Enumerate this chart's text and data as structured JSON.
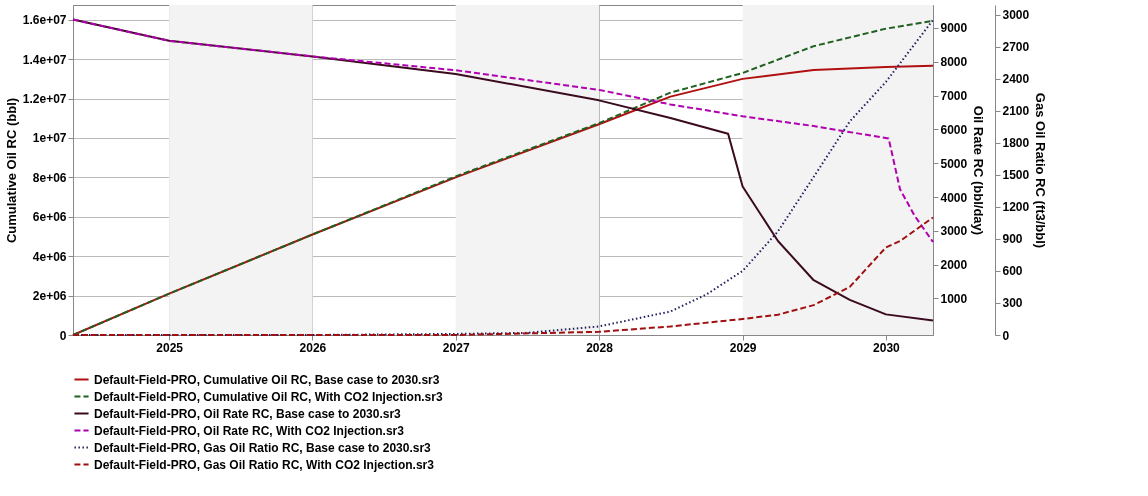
{
  "chart_data": {
    "type": "line",
    "ylabel": "Cumulative Oil RC (bbl)",
    "y2label": "Oil Rate RC (bbl/day)",
    "y3label": "Gas Oil Ratio RC (ft3/bbl)",
    "xlim": [
      "2024-05-01",
      "2030-05-01"
    ],
    "xticks": [
      "2025",
      "2026",
      "2027",
      "2028",
      "2029",
      "2030"
    ],
    "ylim": [
      0,
      16750000
    ],
    "yticks": [
      {
        "value": 0,
        "label": "0"
      },
      {
        "value": 2000000,
        "label": "2e+06"
      },
      {
        "value": 4000000,
        "label": "4e+06"
      },
      {
        "value": 6000000,
        "label": "6e+06"
      },
      {
        "value": 8000000,
        "label": "8e+06"
      },
      {
        "value": 10000000,
        "label": "1e+07"
      },
      {
        "value": 12000000,
        "label": "1.2e+07"
      },
      {
        "value": 14000000,
        "label": "1.4e+07"
      },
      {
        "value": 16000000,
        "label": "1.6e+07"
      }
    ],
    "y2lim": [
      -80,
      9680
    ],
    "y2ticks": [
      1000,
      2000,
      3000,
      4000,
      5000,
      6000,
      7000,
      8000,
      9000
    ],
    "y3lim": [
      0,
      3090
    ],
    "y3ticks": [
      0,
      300,
      600,
      900,
      1200,
      1500,
      1800,
      2100,
      2400,
      2700,
      3000
    ],
    "grid": true,
    "legend": "bottom",
    "marker": "none",
    "bands": [
      {
        "axis": "x",
        "from": "2025-01-01",
        "to": "2026-01-01",
        "color": "#f3f3f3"
      },
      {
        "axis": "x",
        "from": "2027-01-01",
        "to": "2028-01-01",
        "color": "#f3f3f3"
      },
      {
        "axis": "x",
        "from": "2029-01-01",
        "to": "2030-05-01",
        "color": "#f3f3f3"
      }
    ],
    "series": [
      {
        "name": "Default-Field-PRO, Cumulative Oil RC, Base case to 2030.sr3",
        "color": "#b01010",
        "line_style": "solid",
        "x": [
          "2024-05-01",
          "2025-01-01",
          "2026-01-01",
          "2027-01-01",
          "2028-01-01",
          "2028-07-01",
          "2029-01-01",
          "2029-07-01",
          "2030-01-01",
          "2030-05-01"
        ],
        "values": [
          0,
          2100000,
          5100000,
          8000000,
          10700000,
          12100000,
          13000000,
          13450000,
          13600000,
          13670000
        ]
      },
      {
        "name": "Default-Field-PRO, Cumulative Oil RC, With CO2 Injection.sr3",
        "color": "#206020",
        "line_style": "dashed",
        "x": [
          "2024-05-01",
          "2025-01-01",
          "2026-01-01",
          "2027-01-01",
          "2028-01-01",
          "2028-07-01",
          "2029-01-01",
          "2029-07-01",
          "2030-01-01",
          "2030-05-01"
        ],
        "values": [
          0,
          2100000,
          5100000,
          8050000,
          10750000,
          12300000,
          13300000,
          14660000,
          15550000,
          15950000
        ]
      },
      {
        "name": "Default-Field-PRO, Oil Rate RC, Base case to 2030.sr3",
        "color": "#3a0a1e",
        "line_style": "solid",
        "axis": "y2",
        "x": [
          "2024-05-01",
          "2025-01-01",
          "2026-01-01",
          "2027-01-01",
          "2028-01-01",
          "2028-07-01",
          "2028-11-25",
          "2029-01-01",
          "2029-04-01",
          "2029-07-01",
          "2029-10-01",
          "2030-01-01",
          "2030-05-01"
        ],
        "values": [
          9250,
          8620,
          8160,
          7640,
          6860,
          6340,
          5870,
          4310,
          2700,
          1540,
          960,
          530,
          350
        ]
      },
      {
        "name": "Default-Field-PRO, Oil Rate RC, With CO2 Injection.sr3",
        "color": "#b000b0",
        "line_style": "dashed",
        "axis": "y2",
        "x": [
          "2024-05-01",
          "2025-01-01",
          "2026-01-01",
          "2027-01-01",
          "2028-01-01",
          "2028-07-01",
          "2029-01-01",
          "2029-07-01",
          "2030-01-08",
          "2030-02-06",
          "2030-03-15",
          "2030-05-01"
        ],
        "values": [
          9250,
          8620,
          8160,
          7750,
          7170,
          6740,
          6390,
          6100,
          5730,
          4230,
          3450,
          2670
        ]
      },
      {
        "name": "Default-Field-PRO, Gas Oil Ratio RC, Base case to 2030.sr3",
        "color": "#202060",
        "line_style": "dotted",
        "axis": "y3",
        "x": [
          "2024-05-01",
          "2026-01-01",
          "2027-01-01",
          "2027-07-01",
          "2028-01-01",
          "2028-07-01",
          "2028-10-01",
          "2029-01-01",
          "2029-04-01",
          "2029-07-01",
          "2029-10-01",
          "2030-01-01",
          "2030-05-01"
        ],
        "values": [
          0,
          0,
          10,
          20,
          80,
          220,
          380,
          600,
          970,
          1480,
          2000,
          2370,
          2950
        ]
      },
      {
        "name": "Default-Field-PRO, Gas Oil Ratio RC, With CO2 Injection.sr3",
        "color": "#a01010",
        "line_style": "dashed",
        "axis": "y3",
        "x": [
          "2024-05-01",
          "2027-01-01",
          "2028-01-01",
          "2028-07-01",
          "2029-01-01",
          "2029-04-01",
          "2029-07-01",
          "2029-10-01",
          "2030-01-01",
          "2030-02-06",
          "2030-05-01"
        ],
        "values": [
          0,
          0,
          30,
          80,
          150,
          190,
          280,
          450,
          820,
          880,
          1100
        ]
      }
    ]
  }
}
